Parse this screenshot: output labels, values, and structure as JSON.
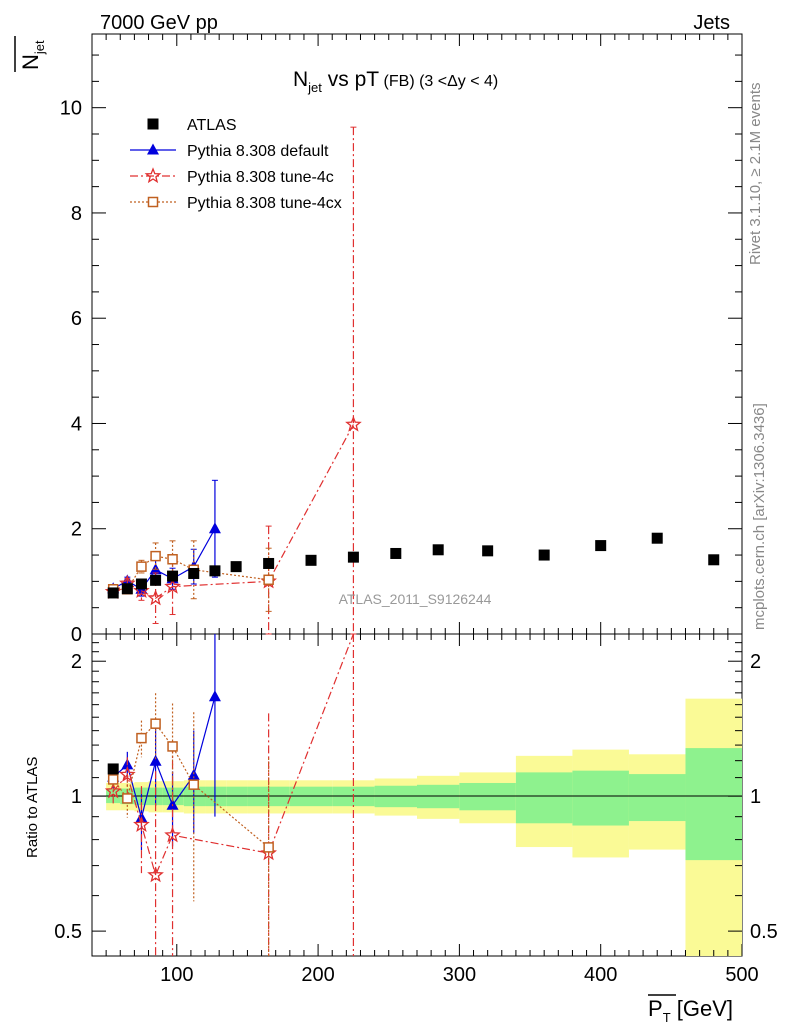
{
  "header": {
    "left": "7000 GeV pp",
    "right": "Jets"
  },
  "side_labels": {
    "rivet": "Rivet 3.1.10, ≥ 2.1M events",
    "mcplots": "mcplots.cern.ch [arXiv:1306.3436]"
  },
  "chart_data": {
    "type": "scatter",
    "title": {
      "main": "N",
      "main_sub": "jet",
      "mid": " vs pT",
      "small": " (FB) ",
      "range": "(3 <Δy < 4)"
    },
    "analysis_label": "ATLAS_2011_S9126244",
    "xlabel": "P",
    "xlabel_sub": "T",
    "xlabel_unit": " [GeV]",
    "ylabel_main": "N",
    "ylabel_main_sub": "jet",
    "ylabel_ratio": "Ratio to ATLAS",
    "xlim": [
      40,
      500
    ],
    "main_ylim": [
      0,
      11.4
    ],
    "ratio_ylim": [
      0.44,
      2.3
    ],
    "x_ticks": [
      100,
      200,
      300,
      400,
      500
    ],
    "x_tick_labels": [
      "100",
      "200",
      "300",
      "400",
      "500"
    ],
    "main_y_ticks": [
      0,
      2,
      4,
      6,
      8,
      10
    ],
    "main_y_tick_labels": [
      "0",
      "2",
      "4",
      "6",
      "8",
      "10"
    ],
    "ratio_y_ticks": [
      0.5,
      1,
      2
    ],
    "ratio_y_tick_labels": [
      "0.5",
      "1",
      "2"
    ],
    "legend_placement": "top-left",
    "series": [
      {
        "name": "ATLAS",
        "color": "#000000",
        "marker": "square",
        "x": [
          55,
          65,
          75,
          85,
          97,
          112,
          127,
          142,
          165,
          195,
          225,
          255,
          285,
          320,
          360,
          400,
          440,
          480
        ],
        "y": [
          0.78,
          0.86,
          0.95,
          1.02,
          1.1,
          1.15,
          1.2,
          1.28,
          1.34,
          1.4,
          1.46,
          1.53,
          1.6,
          1.58,
          1.5,
          1.68,
          1.82,
          1.41
        ]
      },
      {
        "name": "Pythia 8.308 default",
        "color": "#0000dd",
        "marker": "triangle",
        "x": [
          55,
          65,
          75,
          85,
          97,
          112,
          127
        ],
        "y": [
          0.86,
          1.01,
          0.85,
          1.22,
          1.05,
          1.28,
          2.0
        ],
        "err": [
          0.05,
          0.07,
          0.13,
          0.25,
          0.2,
          0.33,
          0.92
        ]
      },
      {
        "name": "Pythia 8.308 tune-4c",
        "color": "#e03030",
        "marker": "star",
        "x": [
          55,
          65,
          75,
          85,
          97,
          165,
          225
        ],
        "y": [
          0.8,
          0.96,
          0.82,
          0.68,
          0.9,
          1.0,
          3.98
        ],
        "err": [
          0.05,
          0.09,
          0.18,
          0.48,
          0.53,
          1.05,
          5.65
        ]
      },
      {
        "name": "Pythia 8.308 tune-4cx",
        "color": "#c06020",
        "marker": "open-square",
        "x": [
          55,
          65,
          75,
          85,
          97,
          112,
          165
        ],
        "y": [
          0.85,
          0.85,
          1.28,
          1.48,
          1.42,
          1.22,
          1.03
        ],
        "err": [
          0.05,
          0.08,
          0.12,
          0.25,
          0.35,
          0.55,
          0.6
        ]
      }
    ],
    "ratio_bands": [
      {
        "x0": 50,
        "x1": 60,
        "inner": 0.035,
        "outer": 0.07
      },
      {
        "x0": 60,
        "x1": 70,
        "inner": 0.04,
        "outer": 0.07
      },
      {
        "x0": 70,
        "x1": 80,
        "inner": 0.045,
        "outer": 0.075
      },
      {
        "x0": 80,
        "x1": 90,
        "inner": 0.045,
        "outer": 0.08
      },
      {
        "x0": 90,
        "x1": 105,
        "inner": 0.045,
        "outer": 0.08
      },
      {
        "x0": 105,
        "x1": 120,
        "inner": 0.05,
        "outer": 0.085
      },
      {
        "x0": 120,
        "x1": 135,
        "inner": 0.05,
        "outer": 0.085
      },
      {
        "x0": 135,
        "x1": 150,
        "inner": 0.05,
        "outer": 0.085
      },
      {
        "x0": 150,
        "x1": 180,
        "inner": 0.05,
        "outer": 0.085
      },
      {
        "x0": 180,
        "x1": 210,
        "inner": 0.05,
        "outer": 0.085
      },
      {
        "x0": 210,
        "x1": 240,
        "inner": 0.05,
        "outer": 0.085
      },
      {
        "x0": 240,
        "x1": 270,
        "inner": 0.055,
        "outer": 0.095
      },
      {
        "x0": 270,
        "x1": 300,
        "inner": 0.06,
        "outer": 0.11
      },
      {
        "x0": 300,
        "x1": 340,
        "inner": 0.07,
        "outer": 0.13
      },
      {
        "x0": 340,
        "x1": 380,
        "inner": 0.13,
        "outer": 0.23
      },
      {
        "x0": 380,
        "x1": 420,
        "inner": 0.14,
        "outer": 0.27
      },
      {
        "x0": 420,
        "x1": 460,
        "inner": 0.12,
        "outer": 0.24
      },
      {
        "x0": 460,
        "x1": 500,
        "inner": 0.28,
        "outer": 0.65
      }
    ],
    "band_colors": {
      "inner": "#8ef28e",
      "outer": "#fafa96"
    }
  }
}
